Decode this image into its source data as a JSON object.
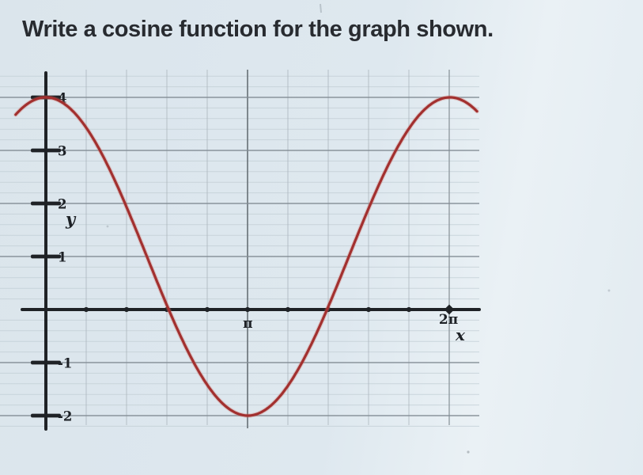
{
  "title": "Write a cosine function for the graph shown.",
  "colors": {
    "background": "#dee8ef",
    "curve": "#a2302f",
    "curve_halo": "#cf7068",
    "axis": "#1f2226",
    "unit_gridline": "#818b93",
    "fine_gridline": "#c3cfd6",
    "vertical_gridline": "#a7b1b8",
    "pi_gridline": "#6e777d",
    "label": "#1d2126"
  },
  "chart_data": {
    "type": "line",
    "title": "",
    "xlabel": "x",
    "ylabel": "y",
    "amplitude": 3,
    "midline": 1,
    "period_rad": 6.28319,
    "phase_shift": 0,
    "maximum": 4,
    "minimum": -2,
    "key_points": [
      {
        "x": "0",
        "y": 4
      },
      {
        "x": "π",
        "y": -2
      },
      {
        "x": "2π",
        "y": 4
      }
    ],
    "x_ticks": [
      {
        "label": "π",
        "value": 3.14159
      },
      {
        "label": "2π",
        "value": 6.28319
      }
    ],
    "x_minor_ticks_per_pi": 5,
    "y_ticks": [
      {
        "label": "4",
        "value": 4
      },
      {
        "label": "3",
        "value": 3
      },
      {
        "label": "2",
        "value": 2
      },
      {
        "label": "1",
        "value": 1
      },
      {
        "label": "-1",
        "value": -1
      },
      {
        "label": "-2",
        "value": -2
      }
    ],
    "x_range_rad": [
      -0.47,
      6.73
    ],
    "ylim": [
      -2,
      4
    ],
    "grid": "graph-paper"
  }
}
